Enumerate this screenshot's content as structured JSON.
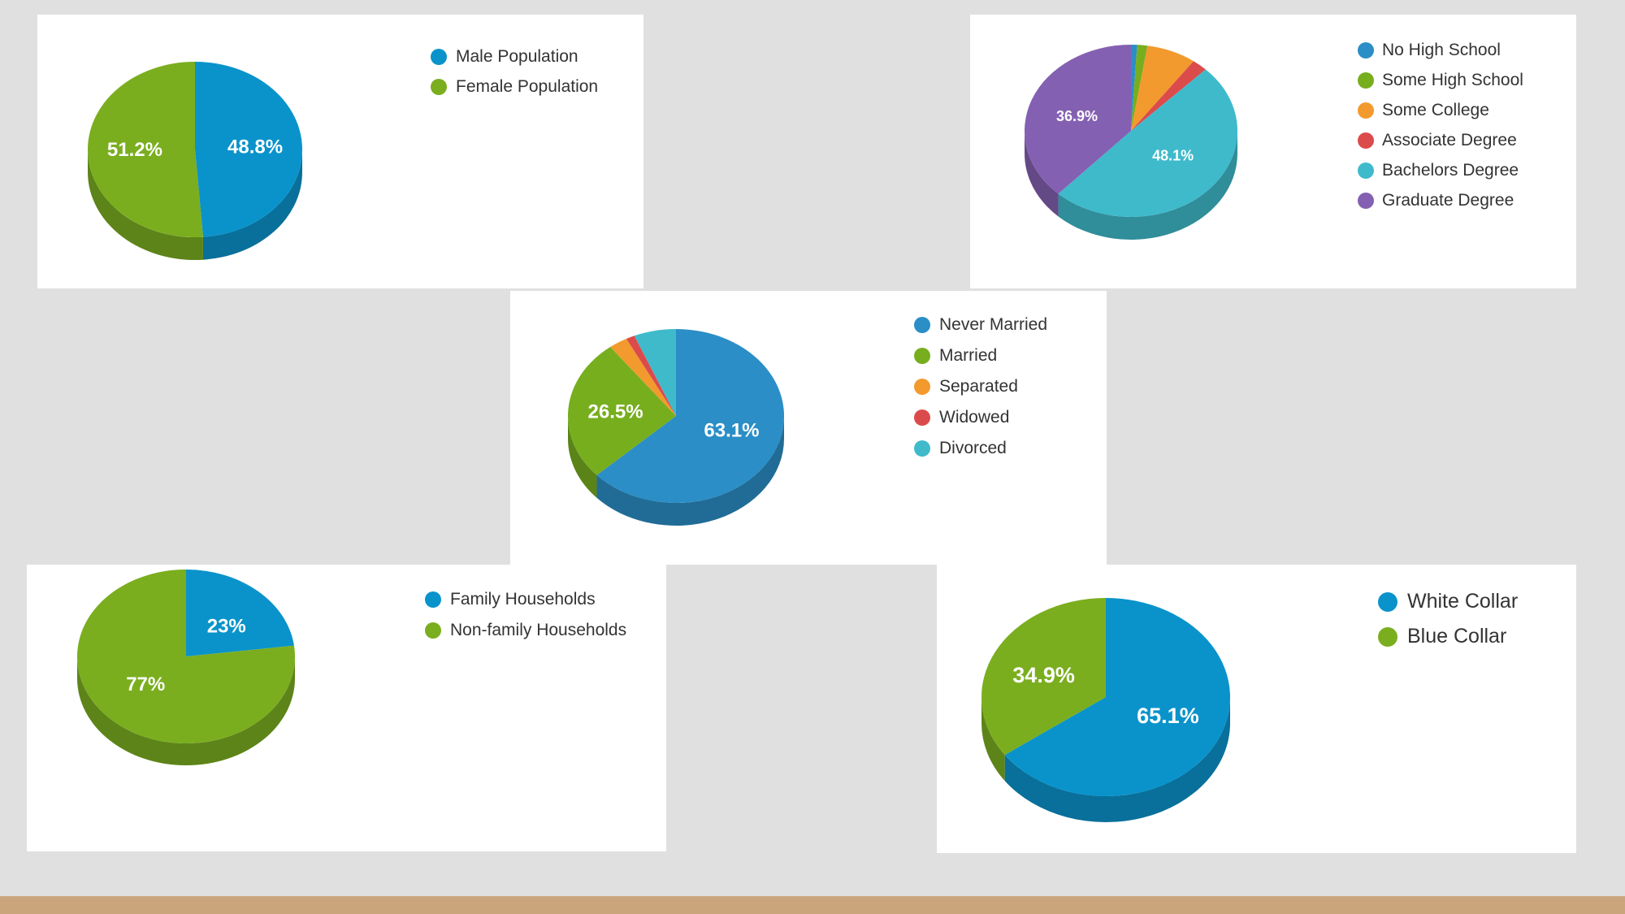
{
  "charts": [
    {
      "id": "gender",
      "chart_data": {
        "type": "pie",
        "title": "",
        "slices": [
          {
            "label": "Male Population",
            "value": 48.8,
            "display": "48.8%",
            "color": "#0a93cb"
          },
          {
            "label": "Female Population",
            "value": 51.2,
            "display": "51.2%",
            "color": "#7aae1f"
          }
        ]
      }
    },
    {
      "id": "education",
      "chart_data": {
        "type": "pie",
        "title": "",
        "slices": [
          {
            "label": "No High School",
            "value": 0.9,
            "display": "",
            "color": "#2b8ec6"
          },
          {
            "label": "Some High School",
            "value": 1.5,
            "display": "",
            "color": "#77ae1e"
          },
          {
            "label": "Some College",
            "value": 7.3,
            "display": "",
            "color": "#f29a2e"
          },
          {
            "label": "Associate Degree",
            "value": 2.3,
            "display": "",
            "color": "#dc4b4b"
          },
          {
            "label": "Bachelors Degree",
            "value": 48.1,
            "display": "48.1%",
            "color": "#3fbacb"
          },
          {
            "label": "Graduate Degree",
            "value": 36.9,
            "display": "36.9%",
            "color": "#8460b2"
          }
        ]
      }
    },
    {
      "id": "marital",
      "chart_data": {
        "type": "pie",
        "title": "",
        "slices": [
          {
            "label": "Never Married",
            "value": 63.1,
            "display": "63.1%",
            "color": "#2b8ec6"
          },
          {
            "label": "Married",
            "value": 26.5,
            "display": "26.5%",
            "color": "#77ae1e"
          },
          {
            "label": "Separated",
            "value": 2.8,
            "display": "",
            "color": "#f29a2e"
          },
          {
            "label": "Widowed",
            "value": 1.3,
            "display": "",
            "color": "#dc4b4b"
          },
          {
            "label": "Divorced",
            "value": 6.3,
            "display": "",
            "color": "#3fbacb"
          }
        ]
      }
    },
    {
      "id": "households",
      "chart_data": {
        "type": "pie",
        "title": "",
        "slices": [
          {
            "label": "Family Households",
            "value": 23,
            "display": "23%",
            "color": "#0a93cb"
          },
          {
            "label": "Non-family Households",
            "value": 77,
            "display": "77%",
            "color": "#7aae1f"
          }
        ]
      }
    },
    {
      "id": "occupation",
      "chart_data": {
        "type": "pie",
        "title": "",
        "slices": [
          {
            "label": "White Collar",
            "value": 65.1,
            "display": "65.1%",
            "color": "#0a93cb"
          },
          {
            "label": "Blue Collar",
            "value": 34.9,
            "display": "34.9%",
            "color": "#7aae1f"
          }
        ]
      }
    }
  ],
  "colors": {
    "background": "#e0e0e0",
    "footer": "#caa57c"
  }
}
